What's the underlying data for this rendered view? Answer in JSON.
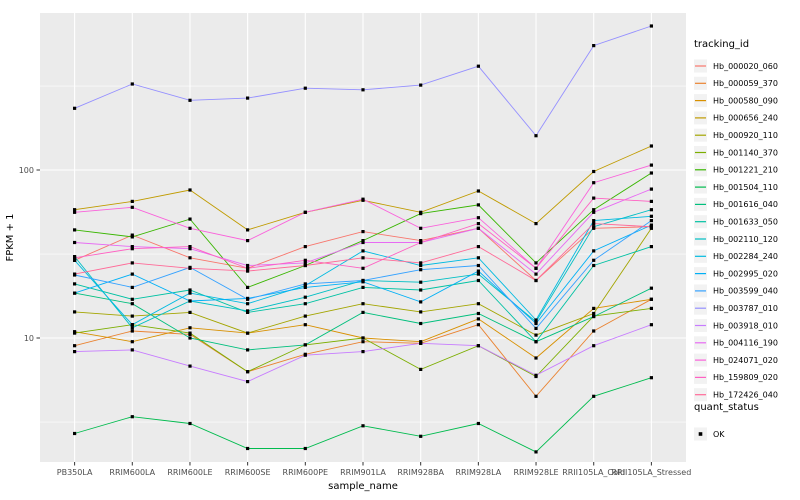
{
  "figure": {
    "panel_bg": "#EBEBEB",
    "grid_color": "#FFFFFF",
    "tick_color": "#333333",
    "axis_text_color": "#4D4D4D",
    "title_text_color": "#000000",
    "point_color": "#000000",
    "legend_key_fill": "#F2F2F2"
  },
  "chart_data": {
    "type": "line",
    "title": "",
    "xlabel": "sample_name",
    "ylabel": "FPKM + 1",
    "y_scale": "log10",
    "y_ticks": [
      100,
      10
    ],
    "y_minor": [
      316,
      31.6,
      3.16
    ],
    "ylim_log": [
      1.83,
      860
    ],
    "grid": true,
    "legend_position": "right",
    "legend_title": "tracking_id",
    "legend2_title": "quant_status",
    "legend2_items": [
      "OK"
    ],
    "point_shape": "square",
    "categories": [
      "PB350LA",
      "RRIM600LA",
      "RRIM600LE",
      "RRIM600SE",
      "RRIM600PE",
      "RRIM901LA",
      "RRIM928BA",
      "RRIM928LA",
      "RRIM928LE",
      "RRII105LA_Cold",
      "RRII105LA_Stressed"
    ],
    "series": [
      {
        "name": "Hb_000020_060",
        "color": "#F8766D",
        "values": [
          29,
          41,
          30,
          26,
          35,
          43,
          38,
          45,
          22,
          45,
          46
        ]
      },
      {
        "name": "Hb_000059_370",
        "color": "#EA8331",
        "values": [
          9,
          11,
          10.5,
          6.3,
          8,
          9.5,
          9.3,
          12,
          4.5,
          11,
          17
        ]
      },
      {
        "name": "Hb_000580_090",
        "color": "#D89000",
        "values": [
          10.9,
          9.5,
          11.5,
          10.7,
          12,
          10,
          9.5,
          13,
          7.6,
          15,
          17
        ]
      },
      {
        "name": "Hb_000656_240",
        "color": "#C09B00",
        "values": [
          58,
          65,
          76,
          44,
          56,
          66,
          56,
          75,
          48,
          98,
          139
        ]
      },
      {
        "name": "Hb_000920_110",
        "color": "#A3A500",
        "values": [
          14.3,
          13.5,
          14.2,
          10.7,
          13.5,
          16,
          14.3,
          16,
          10.4,
          14,
          45
        ]
      },
      {
        "name": "Hb_001140_370",
        "color": "#7CAE00",
        "values": [
          10.7,
          12,
          10.7,
          6.3,
          9.1,
          10,
          6.5,
          9,
          5.9,
          13.5,
          15
        ]
      },
      {
        "name": "Hb_001221_210",
        "color": "#39B600",
        "values": [
          44,
          40,
          51,
          20,
          27,
          38,
          55,
          62,
          28,
          58,
          96
        ]
      },
      {
        "name": "Hb_001504_110",
        "color": "#00BB4E",
        "values": [
          2.7,
          3.4,
          3.1,
          2.2,
          2.2,
          3.0,
          2.6,
          3.1,
          2.1,
          4.5,
          5.8
        ]
      },
      {
        "name": "Hb_001616_040",
        "color": "#00BF7D",
        "values": [
          18.5,
          16,
          10,
          8.5,
          9.1,
          14.2,
          12.2,
          14,
          9.5,
          13.4,
          19.8
        ]
      },
      {
        "name": "Hb_001633_050",
        "color": "#00C1A3",
        "values": [
          21,
          17,
          19.3,
          14.2,
          16,
          20,
          19.3,
          22,
          9.5,
          27,
          35
        ]
      },
      {
        "name": "Hb_002110_120",
        "color": "#00BFC4",
        "values": [
          30.5,
          11.5,
          16.6,
          14.5,
          17.5,
          22,
          21.5,
          24,
          12.5,
          46,
          58
        ]
      },
      {
        "name": "Hb_002284_240",
        "color": "#00BAE0",
        "values": [
          29,
          12,
          18.5,
          16,
          20.5,
          33,
          27,
          30,
          12.8,
          50,
          53
        ]
      },
      {
        "name": "Hb_002995_020",
        "color": "#00B0F6",
        "values": [
          18.5,
          24,
          16.6,
          17.2,
          20,
          21.6,
          16.4,
          25,
          12.2,
          33,
          47
        ]
      },
      {
        "name": "Hb_003599_040",
        "color": "#35A2FF",
        "values": [
          23.7,
          20,
          26.3,
          17,
          21,
          22,
          25.5,
          27,
          11.4,
          29,
          50
        ]
      },
      {
        "name": "Hb_003787_010",
        "color": "#9590FF",
        "values": [
          233,
          325,
          260,
          268,
          307,
          300,
          320,
          415,
          160,
          550,
          720
        ]
      },
      {
        "name": "Hb_003918_010",
        "color": "#C77CFF",
        "values": [
          8.3,
          8.5,
          6.8,
          5.5,
          7.9,
          8.3,
          9.3,
          9,
          6,
          9,
          12
        ]
      },
      {
        "name": "Hb_004116_190",
        "color": "#E76BF3",
        "values": [
          37,
          35,
          34,
          27,
          28,
          37,
          37,
          45,
          24,
          56,
          77
        ]
      },
      {
        "name": "Hb_024071_020",
        "color": "#FA62DB",
        "values": [
          56,
          60,
          45,
          38,
          56,
          67,
          45,
          52,
          26,
          84,
          107
        ]
      },
      {
        "name": "Hb_159809_020",
        "color": "#FF61C3",
        "values": [
          30,
          34,
          35,
          26,
          29,
          26,
          37,
          48,
          26,
          68,
          65
        ]
      },
      {
        "name": "Hb_172426_040",
        "color": "#FF6A98",
        "values": [
          24,
          28,
          26,
          25,
          27,
          30,
          28,
          35,
          22,
          48,
          46
        ]
      }
    ]
  }
}
